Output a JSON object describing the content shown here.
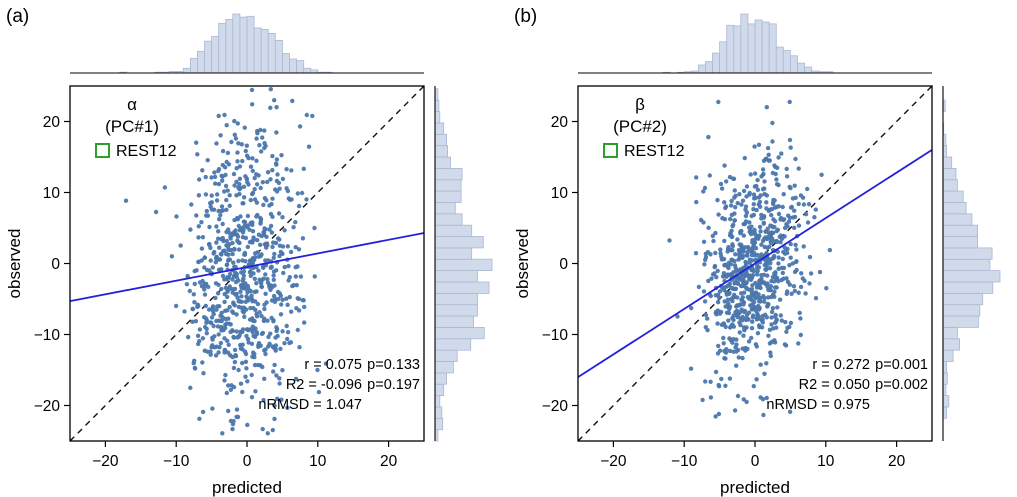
{
  "colors": {
    "dot": "#4b77ad",
    "regression": "#2222dd",
    "identity": "#111111",
    "hist_fill": "#ccd6e8",
    "hist_stroke": "#a9b8d4",
    "legend_green": "#2ca02c"
  },
  "chart_data": [
    {
      "type": "scatter",
      "panel": "(a)",
      "title_symbol": "α",
      "title_component": "(PC#1)",
      "legend": "REST12",
      "xlabel": "predicted",
      "ylabel": "observed",
      "xlim": [
        -25,
        25
      ],
      "ylim": [
        -25,
        25
      ],
      "xticks": [
        -20,
        -10,
        0,
        10,
        20
      ],
      "yticks": [
        -20,
        -10,
        0,
        10,
        20
      ],
      "grid": false,
      "marginal_histograms": {
        "top": "distribution of predicted",
        "right": "distribution of observed"
      },
      "stats_rows": [
        [
          "r = 0.075",
          "p=0.133"
        ],
        [
          "R2 = -0.096",
          "p=0.197"
        ],
        [
          "nRMSD = 1.047",
          ""
        ]
      ],
      "identity_line": {
        "x": [
          -25,
          25
        ],
        "y": [
          -25,
          25
        ],
        "style": "dashed"
      },
      "regression_line": {
        "x": [
          -25,
          25
        ],
        "y": [
          -5.3,
          4.3
        ]
      },
      "scatter_distribution": {
        "n": 780,
        "seed": 7,
        "x_mean": -0.6,
        "x_sd": 4.2,
        "y_mean": -0.5,
        "y_sd": 10.3,
        "r": 0.075
      },
      "hist_x_bin": 1.0,
      "hist_y_bin": 1.6
    },
    {
      "type": "scatter",
      "panel": "(b)",
      "title_symbol": "β",
      "title_component": "(PC#2)",
      "legend": "REST12",
      "xlabel": "predicted",
      "ylabel": "observed",
      "xlim": [
        -25,
        25
      ],
      "ylim": [
        -25,
        25
      ],
      "xticks": [
        -20,
        -10,
        0,
        10,
        20
      ],
      "yticks": [
        -20,
        -10,
        0,
        10,
        20
      ],
      "grid": false,
      "marginal_histograms": {
        "top": "distribution of predicted",
        "right": "distribution of observed"
      },
      "stats_rows": [
        [
          "r = 0.272",
          "p=0.001"
        ],
        [
          "R2 = 0.050",
          "p=0.002"
        ],
        [
          "nRMSD = 0.975",
          ""
        ]
      ],
      "identity_line": {
        "x": [
          -25,
          25
        ],
        "y": [
          -25,
          25
        ],
        "style": "dashed"
      },
      "regression_line": {
        "x": [
          -25,
          25
        ],
        "y": [
          -16,
          16
        ]
      },
      "scatter_distribution": {
        "n": 780,
        "seed": 11,
        "x_mean": -0.3,
        "x_sd": 3.5,
        "y_mean": -0.5,
        "y_sd": 7.5,
        "r": 0.272
      },
      "hist_x_bin": 1.0,
      "hist_y_bin": 1.6
    }
  ]
}
